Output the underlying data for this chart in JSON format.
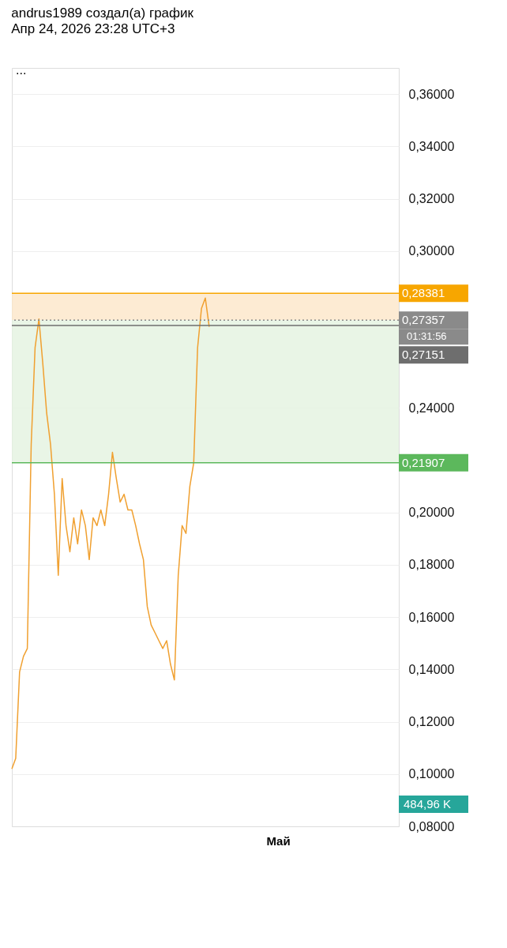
{
  "chart_data": {
    "type": "line",
    "title": "andrus1989 создал(а) график",
    "subtitle": "Апр 24, 2026 23:28 UTC+3",
    "annotations": [
      "...",
      "01:31:56",
      "484,96 K",
      "Май"
    ],
    "categories": [
      null,
      null,
      null,
      null,
      null,
      null,
      null,
      null,
      null,
      null,
      null,
      null,
      null,
      null,
      null,
      null,
      null,
      null,
      null,
      null,
      null,
      null,
      null,
      null,
      null,
      null,
      null,
      null,
      null,
      null,
      null,
      null,
      null,
      null,
      null,
      null,
      null,
      null,
      null,
      null,
      null,
      null,
      null,
      null,
      null,
      null,
      null,
      null,
      null,
      null,
      null,
      null,
      null,
      null,
      null,
      null,
      null,
      null,
      null,
      null,
      null,
      null,
      null,
      null,
      null,
      null,
      null,
      null,
      null,
      null,
      null,
      null,
      null,
      null,
      null,
      null,
      null,
      null,
      null,
      null,
      null,
      null,
      null,
      null,
      null,
      null,
      null,
      null,
      null,
      null,
      null,
      null,
      null,
      null,
      null,
      null,
      null,
      null,
      null,
      null,
      null
    ],
    "series": [
      {
        "color": "#f0a030",
        "values": [
          0.102,
          0.106,
          0.139,
          0.145,
          0.148,
          0.226,
          0.263,
          0.274,
          0.257,
          0.238,
          0.226,
          0.207,
          0.176,
          0.213,
          0.195,
          0.185,
          0.198,
          0.188,
          0.201,
          0.195,
          0.182,
          0.198,
          0.195,
          0.201,
          0.195,
          0.207,
          0.223,
          0.213,
          0.204,
          0.207,
          0.201,
          0.201,
          0.195,
          0.188,
          0.182,
          0.164,
          0.157,
          0.154,
          0.151,
          0.148,
          0.151,
          0.142,
          0.136,
          0.176,
          0.195,
          0.192,
          0.21,
          0.219,
          0.263,
          0.278,
          0.282,
          0.271,
          null,
          null,
          null,
          null,
          null,
          null,
          null,
          null,
          null,
          null,
          null,
          null,
          null,
          null,
          null,
          null,
          null,
          null,
          null,
          null,
          null,
          null,
          null,
          null,
          null,
          null,
          null,
          null,
          null,
          null,
          null,
          null,
          null,
          null,
          null,
          null,
          null,
          null,
          null,
          null,
          null,
          null,
          null,
          null,
          null,
          null,
          null,
          null,
          null
        ]
      }
    ],
    "ylim": [
      0.08,
      0.37
    ],
    "yticks": [
      {
        "value": 0.08,
        "label": "0,08000"
      },
      {
        "value": 0.1,
        "label": "0,10000"
      },
      {
        "value": 0.12,
        "label": "0,12000"
      },
      {
        "value": 0.14,
        "label": "0,14000"
      },
      {
        "value": 0.16,
        "label": "0,16000"
      },
      {
        "value": 0.18,
        "label": "0,18000"
      },
      {
        "value": 0.2,
        "label": "0,20000"
      },
      {
        "value": 0.24,
        "label": "0,24000"
      },
      {
        "value": 0.3,
        "label": "0,30000"
      },
      {
        "value": 0.32,
        "label": "0,32000"
      },
      {
        "value": 0.34,
        "label": "0,34000"
      },
      {
        "value": 0.36,
        "label": "0,36000"
      }
    ],
    "ref_lines": [
      {
        "axis": "y",
        "value": 0.28381,
        "label": "0,28381",
        "color": "#f7a600"
      },
      {
        "axis": "y",
        "value": 0.27357,
        "label": "0,27357",
        "color": "#8a8a8a",
        "line_style": "dotted"
      },
      {
        "axis": "y",
        "value": 0.27151,
        "label": "0,27151",
        "color": "#6e6e6e"
      },
      {
        "axis": "y",
        "value": 0.21907,
        "label": "0,21907",
        "color": "#5cb85c"
      }
    ],
    "bands": [
      {
        "axis": "y",
        "from": 0.27357,
        "to": 0.28381,
        "color": "#fde6c8"
      },
      {
        "axis": "y",
        "from": 0.21907,
        "to": 0.27357,
        "color": "#e4f3e0"
      }
    ],
    "grid": "y"
  }
}
